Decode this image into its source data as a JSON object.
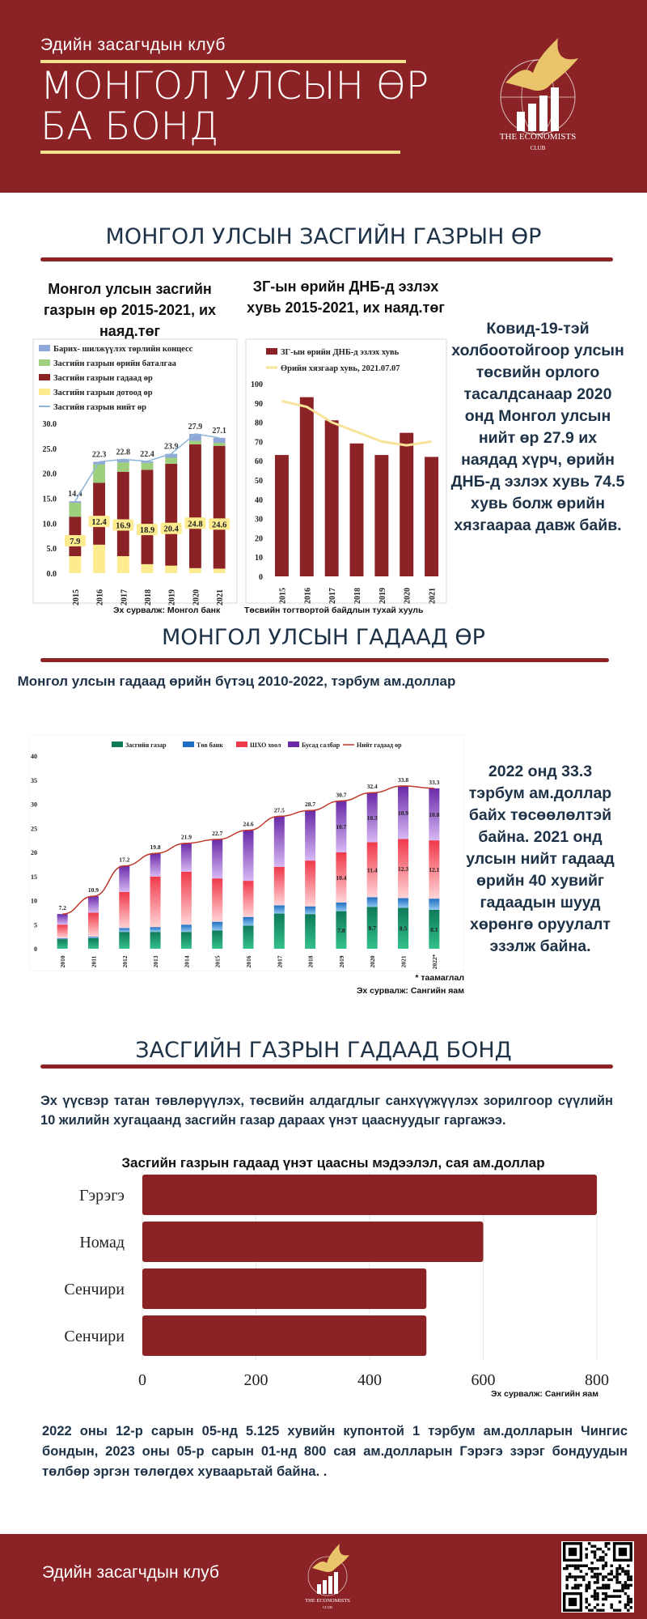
{
  "header": {
    "club": "Эдийн засагчдын клуб",
    "title_line1": "МОНГОЛ УЛСЫН ӨР",
    "title_line2": "БА БОНД",
    "logo_line1": "THE ECONOMISTS",
    "logo_line2": "CLUB"
  },
  "section1": {
    "title": "МОНГОЛ УЛСЫН ЗАСГИЙН ГАЗРЫН ӨР",
    "chart1_title": "Монгол улсын засгийн газрын өр 2015-2021, их наяд.төг",
    "chart2_title": "ЗГ-ын өрийн ДНБ-д эзлэх хувь 2015-2021, их наяд.төг",
    "source1": "Эх сурвалж: Монгол банк",
    "source2": "Төсвийн тогтвортой байдлын тухай хууль",
    "note": "Ковид-19-тэй холбоотойгоор улсын төсвийн орлого тасалдсанаар 2020 онд Монгол улсын нийт өр 27.9 их наядад хүрч, өрийн ДНБ-д эзлэх хувь 74.5 хувь болж өрийн хязгаараа давж байв."
  },
  "section2": {
    "title": "МОНГОЛ УЛСЫН ГАДААД ӨР",
    "chart_title": "Монгол улсын гадаад өрийн бүтэц 2010-2022, тэрбум ам.доллар",
    "forecast_note": "* таамаглал",
    "source": "Эх сурвалж: Сангийн яам",
    "note": "2022 онд 33.3 тэрбум ам.доллар байх төсөөлөлтэй байна. 2021 онд улсын нийт гадаад өрийн 40 хувийг гадаадын шууд хөрөнгө оруулалт эзэлж байна."
  },
  "section3": {
    "title": "ЗАСГИЙН ГАЗРЫН ГАДААД БОНД",
    "intro": "Эх үүсвэр татан төвлөрүүлэх, төсвийн алдагдлыг санхүүжүүлэх зорилгоор сүүлийн 10 жилийн хугацаанд засгийн газар дараах үнэт цааснуудыг гаргажээ.",
    "chart_title": "Засгийн газрын гадаад үнэт цаасны мэдээлэл, сая ам.доллар",
    "source": "Эх сурвалж: Сангийн яам",
    "closing": "2022 оны 12-р сарын 05-нд 5.125 хувийн купонтой 1 тэрбум ам.долларын Чингис бондын, 2023 оны 05-р сарын 01-нд 800 сая ам.долларын Гэрэгэ зэрэг бондуудын төлбөр эргэн төлөгдөх хуваарьтай байна. ."
  },
  "footer": {
    "club": "Эдийн засагчдын клуб"
  },
  "colors": {
    "brand": "#8b2326",
    "gold": "#f3e08a",
    "navy": "#1e3247"
  },
  "chart_data": [
    {
      "type": "bar",
      "stacked": true,
      "categories": [
        "2015",
        "2016",
        "2017",
        "2018",
        "2019",
        "2020",
        "2021"
      ],
      "series": [
        {
          "name": "Засгийн газрын дотоод өр",
          "values": [
            3.4,
            5.7,
            3.4,
            1.8,
            1.5,
            1.0,
            0.9
          ]
        },
        {
          "name": "Засгийн газрын гадаад өр",
          "values": [
            7.9,
            12.4,
            16.9,
            18.9,
            20.4,
            24.8,
            24.6
          ]
        },
        {
          "name": "Засгийн газрын өрийн баталгаа",
          "values": [
            2.8,
            3.7,
            1.9,
            1.4,
            1.2,
            0.7,
            0.6
          ]
        },
        {
          "name": "Барих- шилжүүлэх төрлийн концесс",
          "values": [
            0.3,
            0.5,
            0.6,
            0.3,
            0.8,
            1.4,
            1.0
          ]
        }
      ],
      "line": {
        "name": "Засгийн газрын нийт өр",
        "values": [
          14.4,
          22.3,
          22.8,
          22.4,
          23.9,
          27.9,
          27.1
        ]
      },
      "ylim": [
        0,
        30
      ],
      "yticks": [
        "0.0",
        "5.0",
        "10.0",
        "15.0",
        "20.0",
        "25.0",
        "30.0"
      ]
    },
    {
      "type": "bar",
      "categories": [
        "2015",
        "2016",
        "2017",
        "2018",
        "2019",
        "2020",
        "2021"
      ],
      "series": [
        {
          "name": "ЗГ-ын өрийн ДНБ-д эзлэх хувь",
          "values": [
            63,
            93,
            81,
            69,
            63,
            74.5,
            62
          ]
        }
      ],
      "line": {
        "name": "Өрийн хязгаар хувь, 2021.07.07",
        "values": [
          91,
          88,
          80,
          75,
          70,
          68,
          70
        ]
      },
      "ylim": [
        0,
        100
      ],
      "yticks": [
        "0",
        "10",
        "20",
        "30",
        "40",
        "50",
        "60",
        "70",
        "80",
        "90",
        "100"
      ]
    },
    {
      "type": "bar",
      "stacked": true,
      "categories": [
        "2010",
        "2011",
        "2012",
        "2013",
        "2014",
        "2015",
        "2016",
        "2017",
        "2018",
        "2019",
        "2020",
        "2021",
        "2022*"
      ],
      "series": [
        {
          "name": "Засгийн газар",
          "values": [
            2.0,
            2.2,
            3.5,
            3.5,
            3.5,
            3.8,
            4.8,
            7.3,
            7.2,
            7.8,
            8.7,
            8.5,
            8.1
          ]
        },
        {
          "name": "Төв банк",
          "values": [
            0.2,
            0.3,
            0.8,
            1.0,
            1.5,
            1.8,
            1.8,
            1.7,
            1.6,
            1.8,
            2.0,
            2.0,
            2.3
          ]
        },
        {
          "name": "ШХО хоол",
          "values": [
            2.8,
            5.0,
            7.5,
            10.5,
            11.0,
            9.0,
            7.5,
            8.0,
            9.5,
            10.4,
            11.4,
            12.3,
            12.1
          ]
        },
        {
          "name": "Бусад салбар",
          "values": [
            2.2,
            3.4,
            5.4,
            4.8,
            5.9,
            8.1,
            10.5,
            10.5,
            10.4,
            10.7,
            10.3,
            10.9,
            10.8
          ]
        }
      ],
      "line": {
        "name": "Нийт гадаад өр",
        "values": [
          7.2,
          10.9,
          17.2,
          19.8,
          21.9,
          22.7,
          24.6,
          27.5,
          28.7,
          30.7,
          32.4,
          33.8,
          33.3
        ]
      },
      "segment_labels": {
        "Засгийн газар": [
          "",
          "",
          "",
          "",
          "",
          "",
          "",
          "",
          "",
          "7.8",
          "8.7",
          "8.5",
          "8.1"
        ],
        "ШХО хоол": [
          "",
          "",
          "",
          "",
          "",
          "",
          "",
          "",
          "",
          "10.4",
          "11.4",
          "12.3",
          "12.1"
        ],
        "Бусад салбар": [
          "",
          "",
          "",
          "",
          "",
          "",
          "",
          "",
          "",
          "10.7",
          "10.3",
          "10.9",
          "10.8"
        ]
      },
      "ylim": [
        0,
        40
      ],
      "yticks": [
        "0",
        "5",
        "10",
        "15",
        "20",
        "25",
        "30",
        "35",
        "40"
      ]
    },
    {
      "type": "bar",
      "orientation": "horizontal",
      "categories": [
        "Гэрэгэ",
        "Номад",
        "Сенчири",
        "Сенчири"
      ],
      "values": [
        800,
        600,
        500,
        500
      ],
      "xlim": [
        0,
        800
      ],
      "xticks": [
        "0",
        "200",
        "400",
        "600",
        "800"
      ]
    }
  ]
}
